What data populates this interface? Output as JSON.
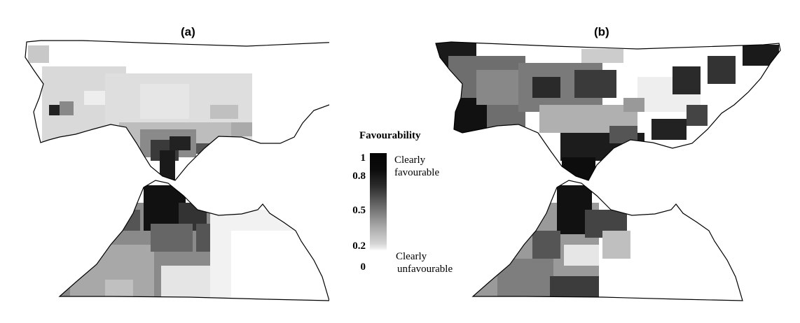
{
  "panels": {
    "a_label": "(a)",
    "b_label": "(b)"
  },
  "legend": {
    "title": "Favourability",
    "ticks": [
      "1",
      "0.8",
      "0.5",
      "0.2",
      "0"
    ],
    "top_label_line1": "Clearly",
    "top_label_line2": "favourable",
    "bottom_label_line1": "Clearly",
    "bottom_label_line2": "unfavourable",
    "scale_min": 0,
    "scale_max": 1
  },
  "colors": {
    "land_white": "#ffffff",
    "outline": "#000000",
    "high_favourability": "#0a0a0a",
    "low_favourability": "#ffffff"
  }
}
